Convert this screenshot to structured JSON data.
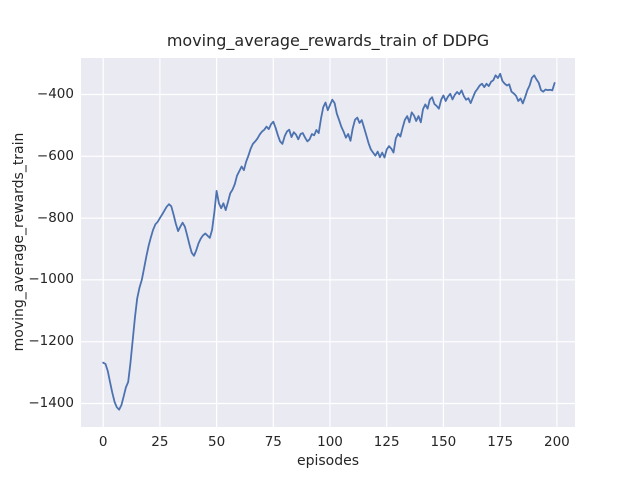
{
  "figure": {
    "background": "#ffffff",
    "axes_background": "#eaeaf2",
    "grid_color": "#ffffff",
    "text_color": "#262626"
  },
  "chart_data": {
    "type": "line",
    "title": "moving_average_rewards_train of DDPG",
    "xlabel": "episodes",
    "ylabel": "moving_average_rewards_train",
    "legend": null,
    "grid": true,
    "xlim": [
      -9.8,
      208.0
    ],
    "ylim": [
      -1476,
      -282
    ],
    "x_ticks": [
      0,
      25,
      50,
      75,
      100,
      125,
      150,
      175,
      200
    ],
    "x_tick_labels": [
      "0",
      "25",
      "50",
      "75",
      "100",
      "125",
      "150",
      "175",
      "200"
    ],
    "y_ticks": [
      -400,
      -600,
      -800,
      -1000,
      -1200,
      -1400
    ],
    "y_tick_labels": [
      "−400",
      "−600",
      "−800",
      "−1000",
      "−1200",
      "−1400"
    ],
    "line_color": "#4c72b0",
    "line_width": 1.8,
    "series": [
      {
        "name": "moving_average_rewards_train",
        "x_start": 0,
        "x_step": 1,
        "values": [
          -1268,
          -1272,
          -1295,
          -1330,
          -1365,
          -1395,
          -1412,
          -1420,
          -1405,
          -1378,
          -1348,
          -1330,
          -1270,
          -1195,
          -1120,
          -1060,
          -1025,
          -1000,
          -962,
          -925,
          -890,
          -862,
          -838,
          -820,
          -812,
          -800,
          -788,
          -775,
          -763,
          -755,
          -762,
          -788,
          -818,
          -842,
          -828,
          -815,
          -828,
          -855,
          -885,
          -912,
          -922,
          -905,
          -882,
          -866,
          -856,
          -850,
          -857,
          -864,
          -838,
          -780,
          -712,
          -752,
          -768,
          -752,
          -774,
          -748,
          -720,
          -708,
          -690,
          -663,
          -648,
          -633,
          -645,
          -618,
          -598,
          -575,
          -560,
          -552,
          -542,
          -530,
          -520,
          -514,
          -504,
          -512,
          -496,
          -488,
          -508,
          -532,
          -552,
          -560,
          -535,
          -520,
          -514,
          -538,
          -522,
          -530,
          -545,
          -528,
          -525,
          -540,
          -552,
          -545,
          -528,
          -532,
          -515,
          -525,
          -478,
          -442,
          -426,
          -451,
          -434,
          -417,
          -428,
          -462,
          -483,
          -505,
          -521,
          -540,
          -528,
          -550,
          -510,
          -482,
          -475,
          -492,
          -483,
          -508,
          -532,
          -558,
          -578,
          -588,
          -598,
          -585,
          -603,
          -588,
          -604,
          -578,
          -567,
          -575,
          -588,
          -542,
          -527,
          -536,
          -508,
          -482,
          -470,
          -490,
          -458,
          -468,
          -486,
          -470,
          -490,
          -448,
          -432,
          -446,
          -417,
          -409,
          -431,
          -437,
          -446,
          -417,
          -403,
          -421,
          -407,
          -398,
          -416,
          -401,
          -392,
          -399,
          -387,
          -406,
          -417,
          -412,
          -428,
          -410,
          -392,
          -382,
          -371,
          -365,
          -376,
          -365,
          -373,
          -359,
          -354,
          -338,
          -347,
          -333,
          -356,
          -365,
          -371,
          -367,
          -391,
          -397,
          -404,
          -421,
          -413,
          -429,
          -409,
          -386,
          -371,
          -346,
          -338,
          -351,
          -362,
          -386,
          -391,
          -384,
          -386,
          -385,
          -387,
          -363
        ]
      }
    ]
  }
}
